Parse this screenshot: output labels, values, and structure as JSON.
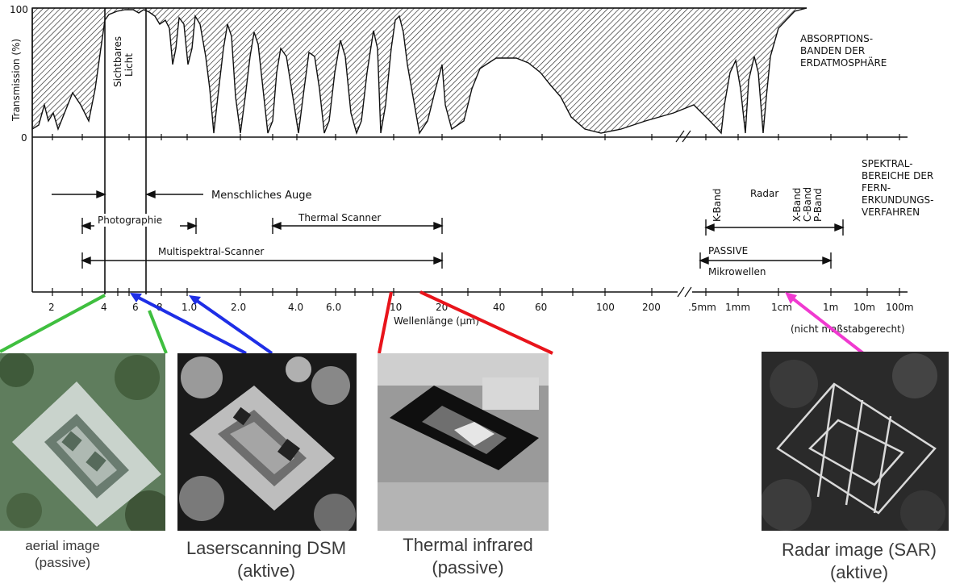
{
  "top_chart": {
    "y_axis_label": "Transmission (%)",
    "y_ticks": [
      "100",
      "0"
    ],
    "visible_light_label": [
      "Sichtbares",
      "Licht"
    ],
    "absorption_label": [
      "ABSORPTIONS-",
      "BANDEN DER",
      "ERDATMOSPHÄRE"
    ]
  },
  "spectral": {
    "heading": [
      "SPEKTRAL-",
      "BEREICHE DER",
      "FERN-",
      "ERKUNDUNGS-",
      "VERFAHREN"
    ],
    "ranges": {
      "human_eye": "Menschliches Auge",
      "photographie": "Photographie",
      "thermal_scanner": "Thermal Scanner",
      "multispektral": "Multispektral-Scanner",
      "radar": "Radar",
      "k_band": "K-Band",
      "x_band": "X-Band",
      "c_band": "C-Band",
      "p_band": "P-Band",
      "passive": "PASSIVE",
      "mikrowellen": "Mikrowellen"
    }
  },
  "x_axis": {
    "tick_labels": [
      "2",
      "4",
      "6",
      "8",
      "1.0",
      "2.0",
      "4.0",
      "6.0",
      "10",
      "20",
      "40",
      "60",
      "100",
      "200",
      ".5mm",
      "1mm",
      "1cm",
      "1m",
      "10m",
      "100m"
    ],
    "label": "Wellenlänge (µm)",
    "note": "(nicht maßstabgerecht)"
  },
  "images": [
    {
      "caption_line1": "aerial image",
      "caption_line2": "(passive)",
      "link_color": "#3fbf3f"
    },
    {
      "caption_line1": "Laserscanning DSM",
      "caption_line2": "(aktive)",
      "link_color": "#1e2ee6"
    },
    {
      "caption_line1": "Thermal infrared",
      "caption_line2": "(passive)",
      "link_color": "#e8141b"
    },
    {
      "caption_line1": "Radar image (SAR)",
      "caption_line2": "(aktive)",
      "link_color": "#f03ad0"
    }
  ]
}
